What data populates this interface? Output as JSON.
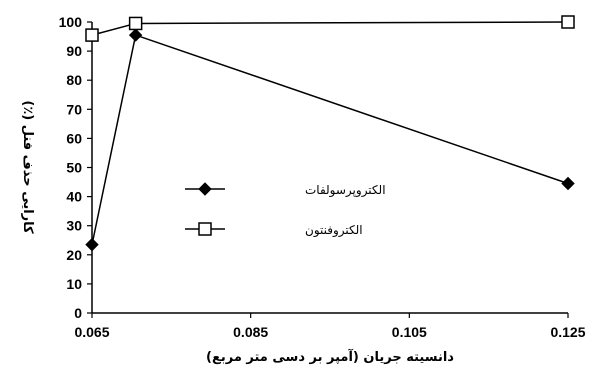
{
  "chart_data": {
    "type": "line",
    "xlabel": "دانسیته جریان (آمپر بر دسی متر مربع)",
    "ylabel": "کارایی حذف فنل (٪)",
    "xlim": [
      0.065,
      0.125
    ],
    "ylim": [
      0,
      100
    ],
    "x_ticks": [
      "0.065",
      "0.085",
      "0.105",
      "0.125"
    ],
    "y_ticks": [
      "0",
      "10",
      "20",
      "30",
      "40",
      "50",
      "60",
      "70",
      "80",
      "90",
      "100"
    ],
    "grid": false,
    "legend_position": "center-left",
    "series": [
      {
        "name": "الکتروپرسولفات",
        "marker": "diamond-filled",
        "color": "#000000",
        "x": [
          0.065,
          0.0705,
          0.125
        ],
        "y": [
          23.5,
          95.5,
          44.5
        ]
      },
      {
        "name": "الکتروفنتون",
        "marker": "square-open",
        "color": "#000000",
        "x": [
          0.065,
          0.0705,
          0.125
        ],
        "y": [
          95.5,
          99.5,
          100
        ]
      }
    ]
  }
}
